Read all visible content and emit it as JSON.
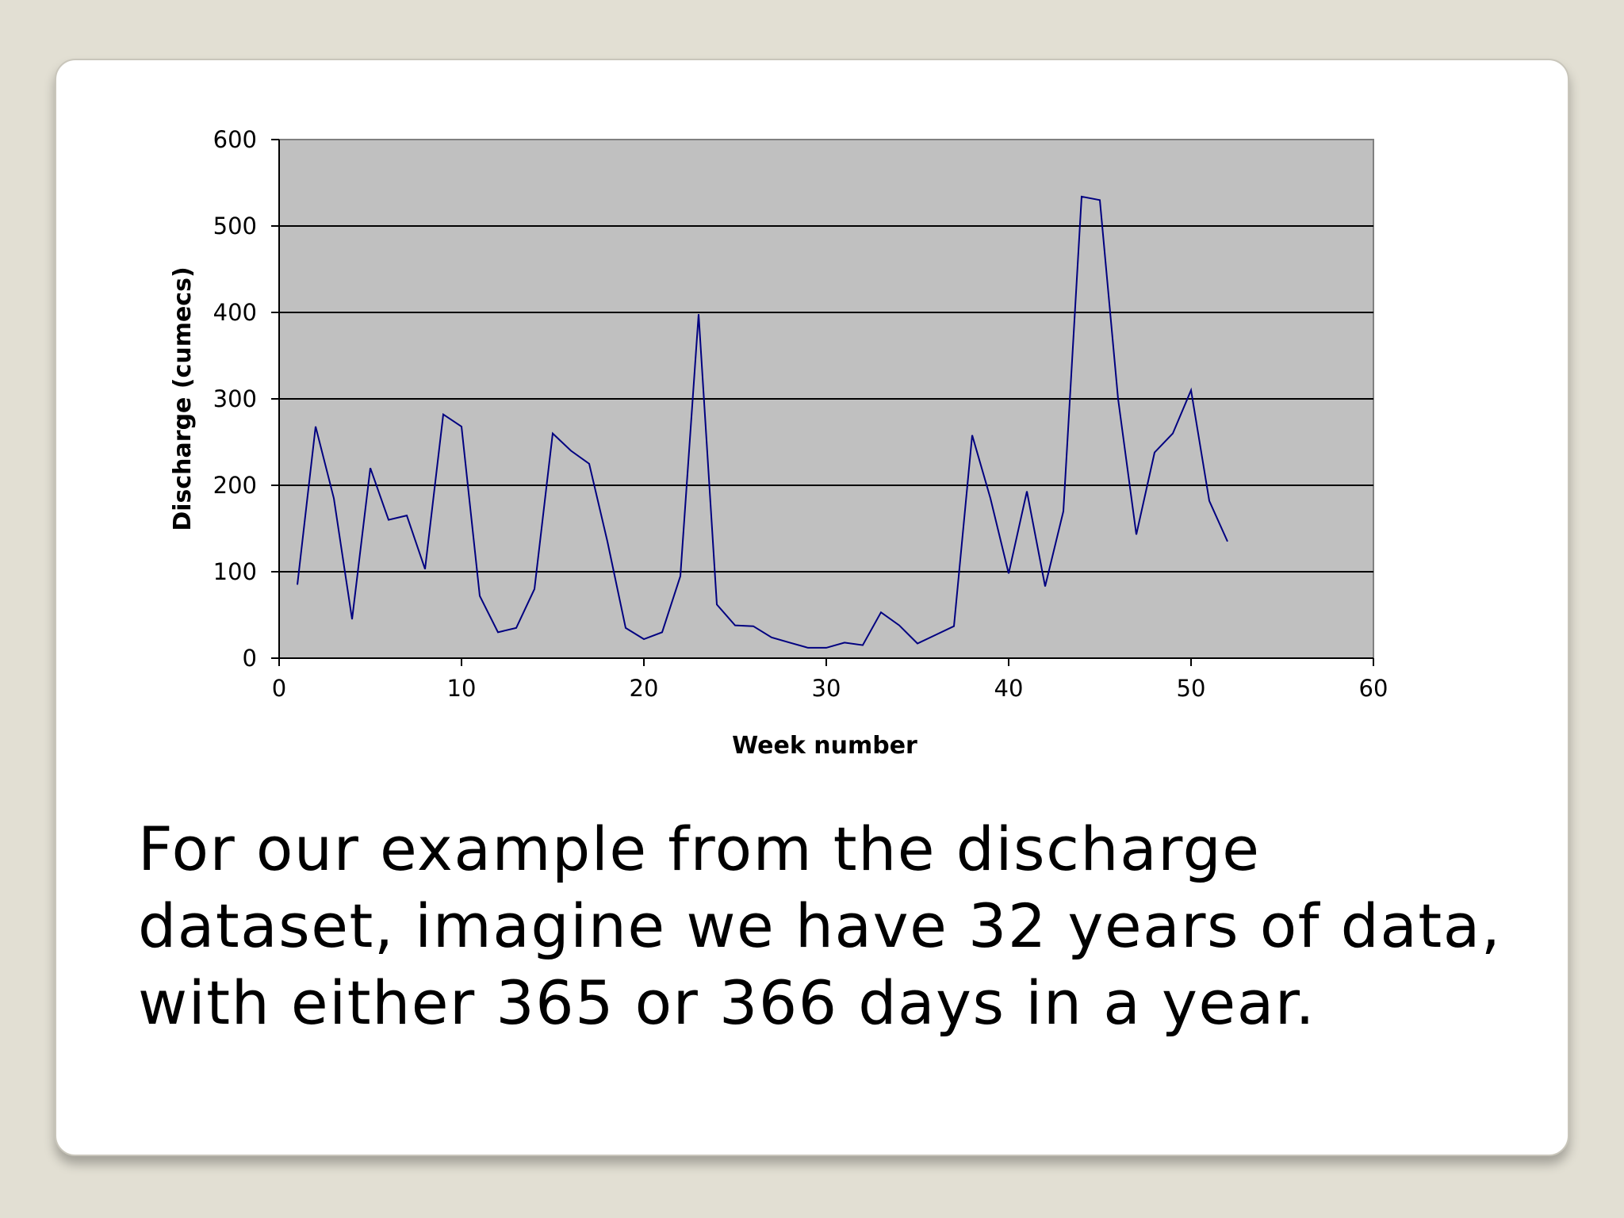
{
  "slide": {
    "body_lines": [
      "For our example from the discharge",
      "dataset, imagine we have 32 years of data,",
      "with either 365 or 366 days in a year."
    ]
  },
  "colors": {
    "page_background": "#e2dfd3",
    "card_background": "#ffffff",
    "plot_area": "#c0c0c0",
    "series_line": "#000080",
    "gridline": "#000000"
  },
  "chart_data": {
    "type": "line",
    "title": "",
    "xlabel": "Week number",
    "ylabel": "Discharge (cumecs)",
    "xlim": [
      0,
      60
    ],
    "ylim": [
      0,
      600
    ],
    "x_ticks": [
      "0",
      "10",
      "20",
      "30",
      "40",
      "50",
      "60"
    ],
    "y_ticks": [
      "0",
      "100",
      "200",
      "300",
      "400",
      "500",
      "600"
    ],
    "grid": "horizontal",
    "legend": "none",
    "series": [
      {
        "x": [
          1,
          2,
          3,
          4,
          5,
          6,
          7,
          8,
          9,
          10,
          11,
          12,
          13,
          14,
          15,
          16,
          17,
          18,
          19,
          20,
          21,
          22,
          23,
          24,
          25,
          26,
          27,
          28,
          29,
          30,
          31,
          32,
          33,
          34,
          35,
          36,
          37,
          38,
          39,
          40,
          41,
          42,
          43,
          44,
          45,
          46,
          47,
          48,
          49,
          50,
          51,
          52
        ],
        "values": [
          85,
          268,
          185,
          45,
          220,
          160,
          165,
          103,
          282,
          268,
          72,
          30,
          35,
          80,
          260,
          240,
          225,
          135,
          35,
          22,
          30,
          95,
          398,
          62,
          38,
          37,
          24,
          18,
          12,
          12,
          18,
          15,
          53,
          38,
          17,
          27,
          37,
          258,
          185,
          98,
          193,
          83,
          170,
          534,
          530,
          300,
          143,
          238,
          260,
          310,
          182,
          135
        ]
      }
    ]
  }
}
